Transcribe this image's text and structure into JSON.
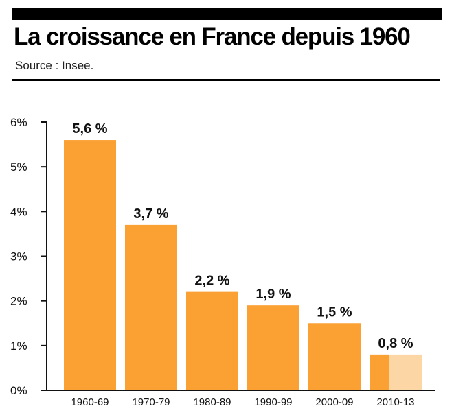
{
  "header": {
    "title": "La croissance en France depuis 1960",
    "source": "Source : Insee."
  },
  "colors": {
    "bar": "#FBA032",
    "bar_partial": "#FDD6A6",
    "axis": "#111111"
  },
  "chart_data": {
    "type": "bar",
    "categories": [
      "1960-69",
      "1970-79",
      "1980-89",
      "1990-99",
      "2000-09",
      "2010-13"
    ],
    "values": [
      5.6,
      3.7,
      2.2,
      1.9,
      1.5,
      0.8
    ],
    "data_labels": [
      "5,6 %",
      "3,7 %",
      "2,2 %",
      "1,9 %",
      "1,5 %",
      "0,8 %"
    ],
    "partial_category": "2010-13",
    "ylim": [
      0,
      6
    ],
    "yticks": [
      0,
      1,
      2,
      3,
      4,
      5,
      6
    ],
    "ytick_labels": [
      "0%",
      "1%",
      "2%",
      "3%",
      "4%",
      "5%",
      "6%"
    ],
    "grid": false,
    "legend": "none",
    "title": "",
    "xlabel": "",
    "ylabel": ""
  }
}
